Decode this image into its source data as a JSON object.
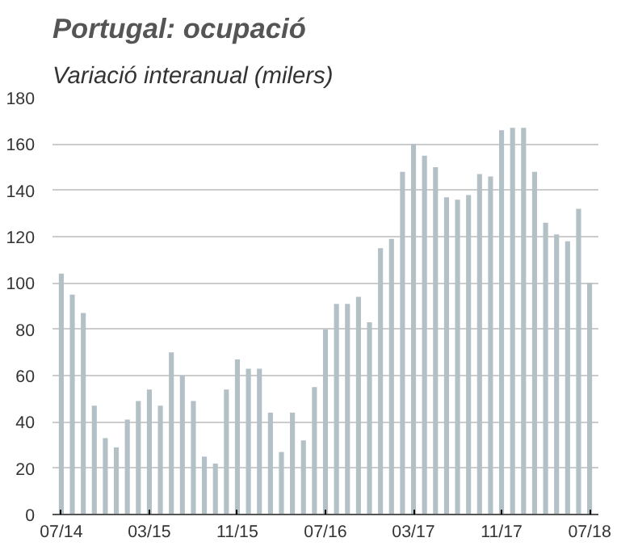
{
  "chart_data": {
    "type": "bar",
    "title": "Portugal: ocupació",
    "subtitle": "Variació interanual (milers)",
    "categories": [
      "07/14",
      null,
      null,
      null,
      null,
      null,
      null,
      null,
      "03/15",
      null,
      null,
      null,
      null,
      null,
      null,
      null,
      "11/15",
      null,
      null,
      null,
      null,
      null,
      null,
      null,
      "07/16",
      null,
      null,
      null,
      null,
      null,
      null,
      null,
      "03/17",
      null,
      null,
      null,
      null,
      null,
      null,
      null,
      "11/17",
      null,
      null,
      null,
      null,
      null,
      null,
      null,
      "07/18"
    ],
    "values": [
      104,
      95,
      87,
      47,
      33,
      29,
      41,
      49,
      54,
      47,
      70,
      60,
      49,
      25,
      22,
      54,
      67,
      63,
      63,
      44,
      27,
      44,
      32,
      55,
      80,
      91,
      91,
      94,
      83,
      115,
      119,
      148,
      160,
      155,
      150,
      137,
      136,
      138,
      147,
      146,
      166,
      167,
      167,
      148,
      126,
      121,
      118,
      132,
      100
    ],
    "color": "#b3c0c6",
    "ylim": [
      0,
      180
    ],
    "yticks": [
      0,
      20,
      40,
      60,
      80,
      100,
      120,
      140,
      160,
      180
    ],
    "grid": "y"
  }
}
